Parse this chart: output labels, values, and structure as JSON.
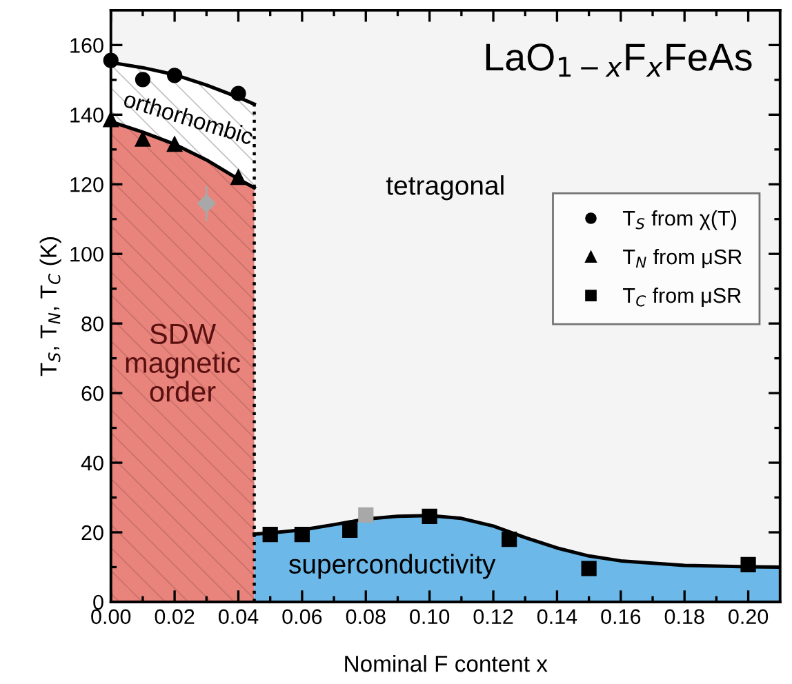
{
  "chart_data": {
    "type": "scatter",
    "xlabel": "Nominal F content x",
    "ylabel": "T$_{S}$, T$_{N}$, T$_{C}$ (K)",
    "xlim": [
      0,
      0.21
    ],
    "ylim": [
      0,
      170
    ],
    "xticks": [
      {
        "value": 0,
        "label": "0.00"
      },
      {
        "value": 0.02,
        "label": "0.02"
      },
      {
        "value": 0.04,
        "label": "0.04"
      },
      {
        "value": 0.06,
        "label": "0.06"
      },
      {
        "value": 0.08,
        "label": "0.08"
      },
      {
        "value": 0.1,
        "label": "0.10"
      },
      {
        "value": 0.12,
        "label": "0.12"
      },
      {
        "value": 0.14,
        "label": "0.14"
      },
      {
        "value": 0.16,
        "label": "0.16"
      },
      {
        "value": 0.18,
        "label": "0.18"
      },
      {
        "value": 0.2,
        "label": "0.20"
      }
    ],
    "yticks": [
      0,
      20,
      40,
      60,
      80,
      100,
      120,
      140,
      160
    ],
    "grid": false,
    "legend": "right",
    "annotations": [
      "LaO$_{1−x}$F$_{x}$FeAs",
      "orthorhombic",
      "tetragonal",
      "SDW\nmagnetic\norder",
      "superconductivity"
    ],
    "series": [
      {
        "type": "area",
        "color": "#e8847c",
        "x": [
          0,
          0.01,
          0.02,
          0.03,
          0.04,
          0.045
        ],
        "values": [
          138,
          135,
          131.5,
          127,
          121.5,
          119
        ]
      },
      {
        "type": "area",
        "color": "#6cb8e8",
        "x": [
          0.045,
          0.05,
          0.06,
          0.07,
          0.08,
          0.09,
          0.1,
          0.11,
          0.12,
          0.13,
          0.14,
          0.15,
          0.16,
          0.18,
          0.2,
          0.21
        ],
        "values": [
          19.5,
          19.8,
          20.7,
          22.2,
          23.8,
          24.6,
          24.8,
          24,
          21.8,
          18.5,
          15.5,
          13.2,
          11.8,
          10.5,
          10.1,
          10
        ]
      },
      {
        "type": "line",
        "color": "#000000",
        "x": [
          0,
          0.01,
          0.02,
          0.03,
          0.04,
          0.045
        ],
        "values": [
          155,
          153.5,
          151.5,
          148.5,
          145,
          143
        ],
        "lower": [
          138,
          135,
          131.5,
          127,
          121.5,
          119
        ],
        "upper": [
          155,
          153.5,
          151.5,
          148.5,
          145,
          143
        ]
      },
      {
        "type": "line",
        "color": "#000000",
        "line_style": "dotted",
        "x": [
          0.045,
          0.045
        ],
        "values": [
          0,
          143
        ]
      },
      {
        "name": "T$_{S}$ from χ(T)",
        "marker": "circle",
        "color": "#000000",
        "x": [
          0,
          0.01,
          0.02,
          0.04
        ],
        "values": [
          155.6,
          150.1,
          151.3,
          146.1
        ]
      },
      {
        "name": "T$_{N}$ from μSR",
        "marker": "triangle",
        "color": "#000000",
        "x": [
          0,
          0.01,
          0.02,
          0.04
        ],
        "values": [
          138.6,
          133,
          131.5,
          122
        ]
      },
      {
        "name": "T$_{C}$ from μSR",
        "marker": "square",
        "color": "#000000",
        "x": [
          0.05,
          0.06,
          0.075,
          0.1,
          0.125,
          0.15,
          0.2
        ],
        "values": [
          19.4,
          19.4,
          20.6,
          24.6,
          18,
          9.6,
          10.7
        ]
      },
      {
        "marker": "diamond",
        "color": "#a8a8a8",
        "x": [
          0.03
        ],
        "values": [
          114.5
        ],
        "errors": [
          5
        ]
      },
      {
        "marker": "square",
        "color": "#a8a8a8",
        "x": [
          0.08
        ],
        "values": [
          25
        ]
      }
    ]
  }
}
